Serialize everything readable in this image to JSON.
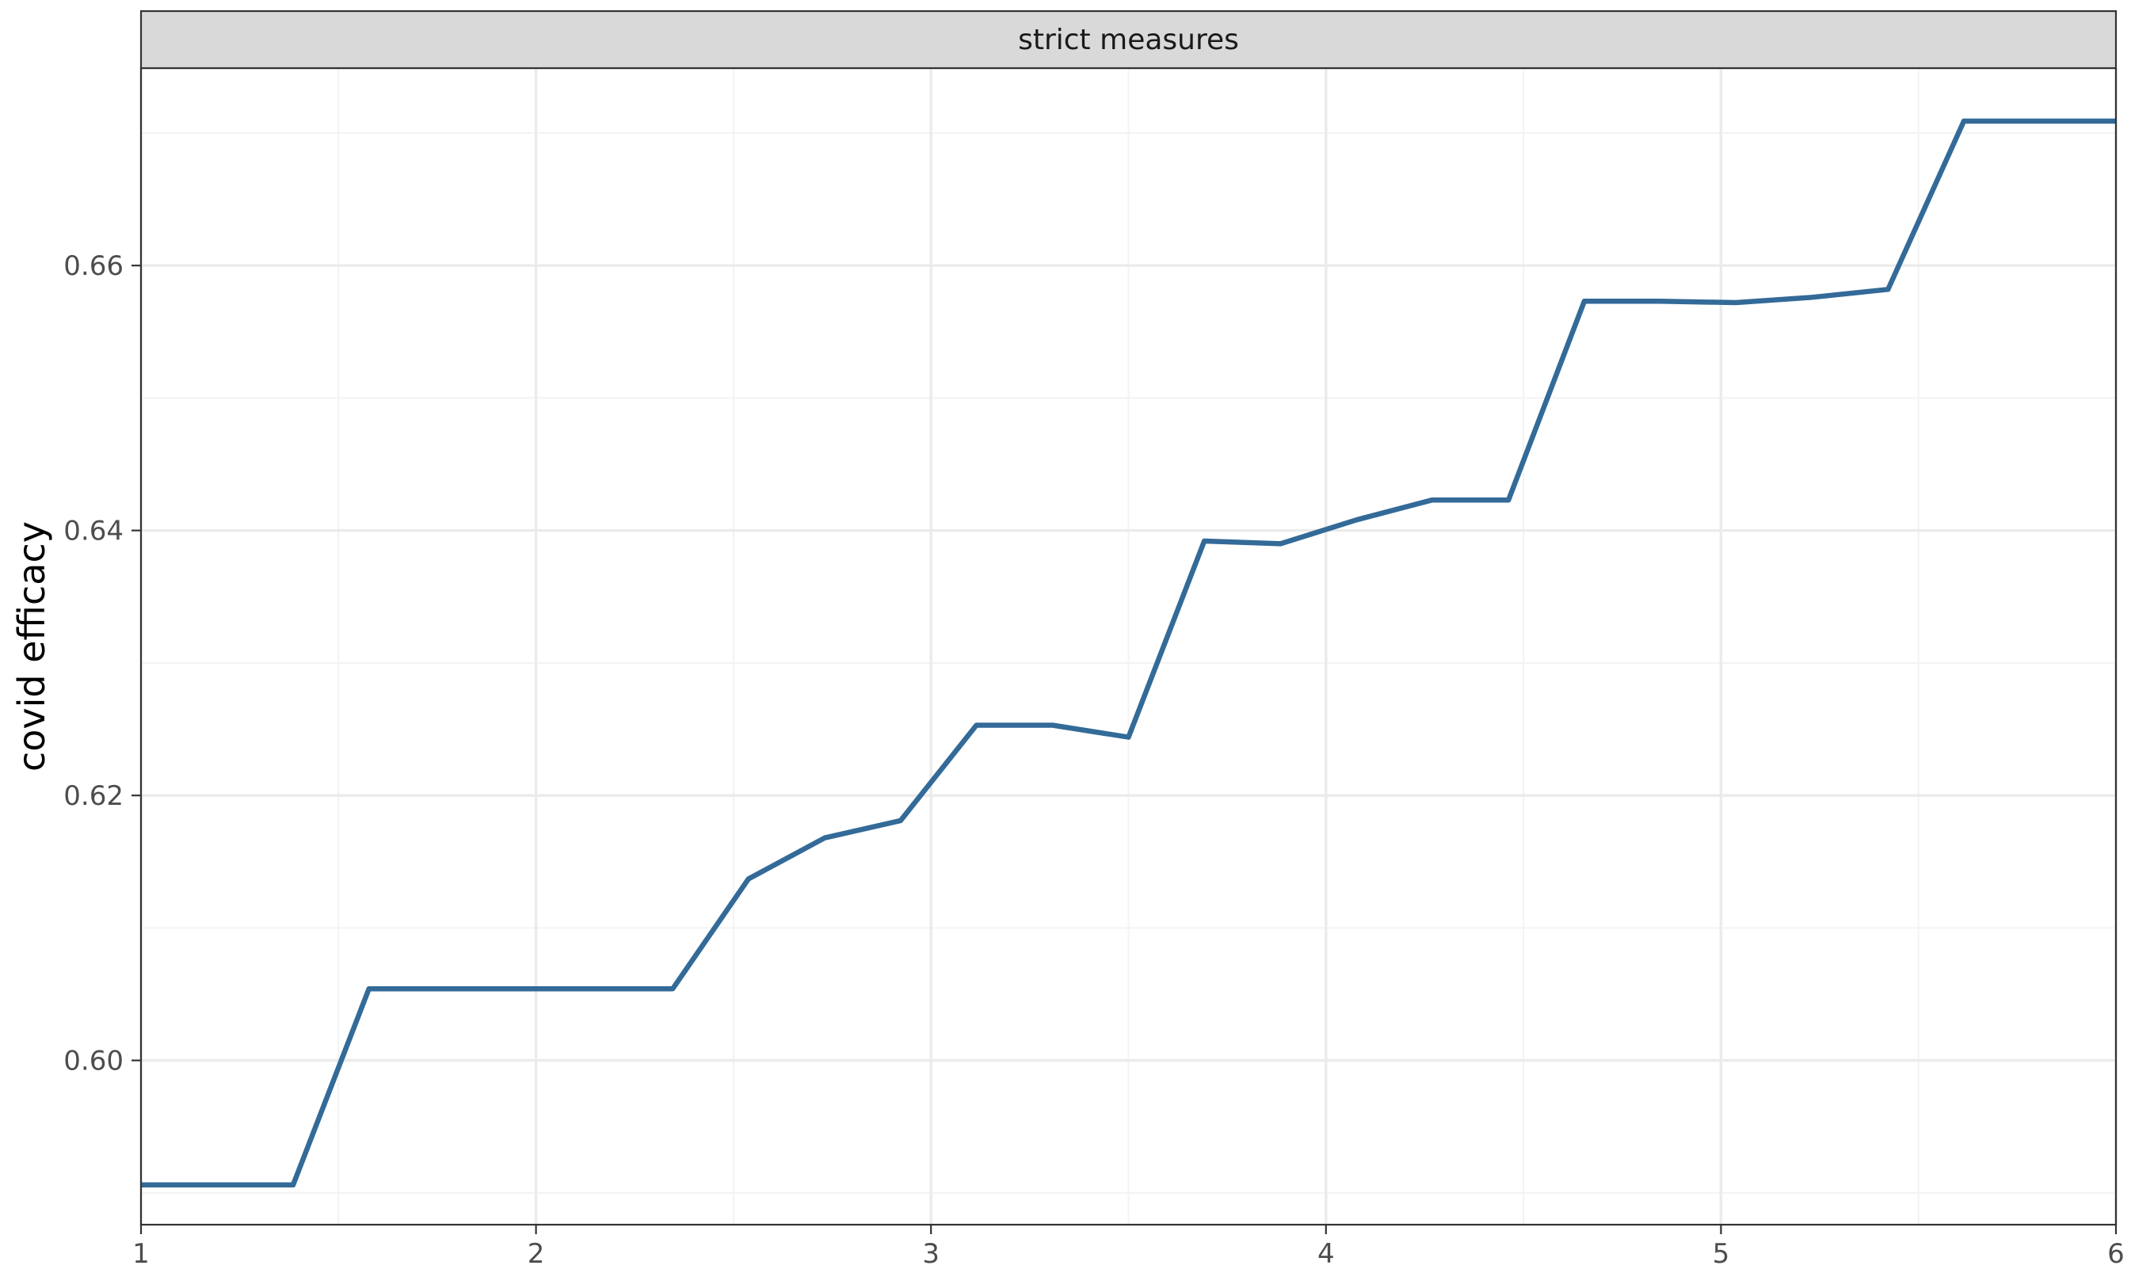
{
  "chart_data": {
    "type": "line",
    "panel_label": "strict measures",
    "xlabel": "",
    "ylabel": "covid efficacy",
    "xlim": [
      1,
      6
    ],
    "ylim": [
      0.5876,
      0.6749
    ],
    "x_ticks": [
      "1",
      "2",
      "3",
      "4",
      "5",
      "6"
    ],
    "x_tick_values": [
      1,
      2,
      3,
      4,
      5,
      6
    ],
    "y_ticks": [
      "0.60",
      "0.62",
      "0.64",
      "0.66"
    ],
    "y_tick_values": [
      0.6,
      0.62,
      0.64,
      0.66
    ],
    "grid": true,
    "colors": {
      "line": "#336a98",
      "strip_fill": "#d9d9d9",
      "grid_major": "#ebebeb",
      "grid_minor": "#f3f3f3",
      "panel_border": "#333333"
    },
    "series": [
      {
        "x": [
          1.0,
          1.385,
          1.577,
          1.962,
          2.154,
          2.346,
          2.538,
          2.731,
          2.923,
          3.115,
          3.308,
          3.5,
          3.692,
          3.885,
          4.077,
          4.269,
          4.462,
          4.654,
          4.846,
          5.038,
          5.231,
          5.423,
          5.615,
          5.808,
          6.0
        ],
        "y": [
          0.5906,
          0.5906,
          0.6054,
          0.6054,
          0.6054,
          0.6054,
          0.6137,
          0.6168,
          0.6181,
          0.6253,
          0.6253,
          0.6244,
          0.6392,
          0.639,
          0.6408,
          0.6423,
          0.6423,
          0.6573,
          0.6573,
          0.6572,
          0.6576,
          0.6582,
          0.6709,
          0.6709,
          0.6709
        ]
      }
    ]
  }
}
